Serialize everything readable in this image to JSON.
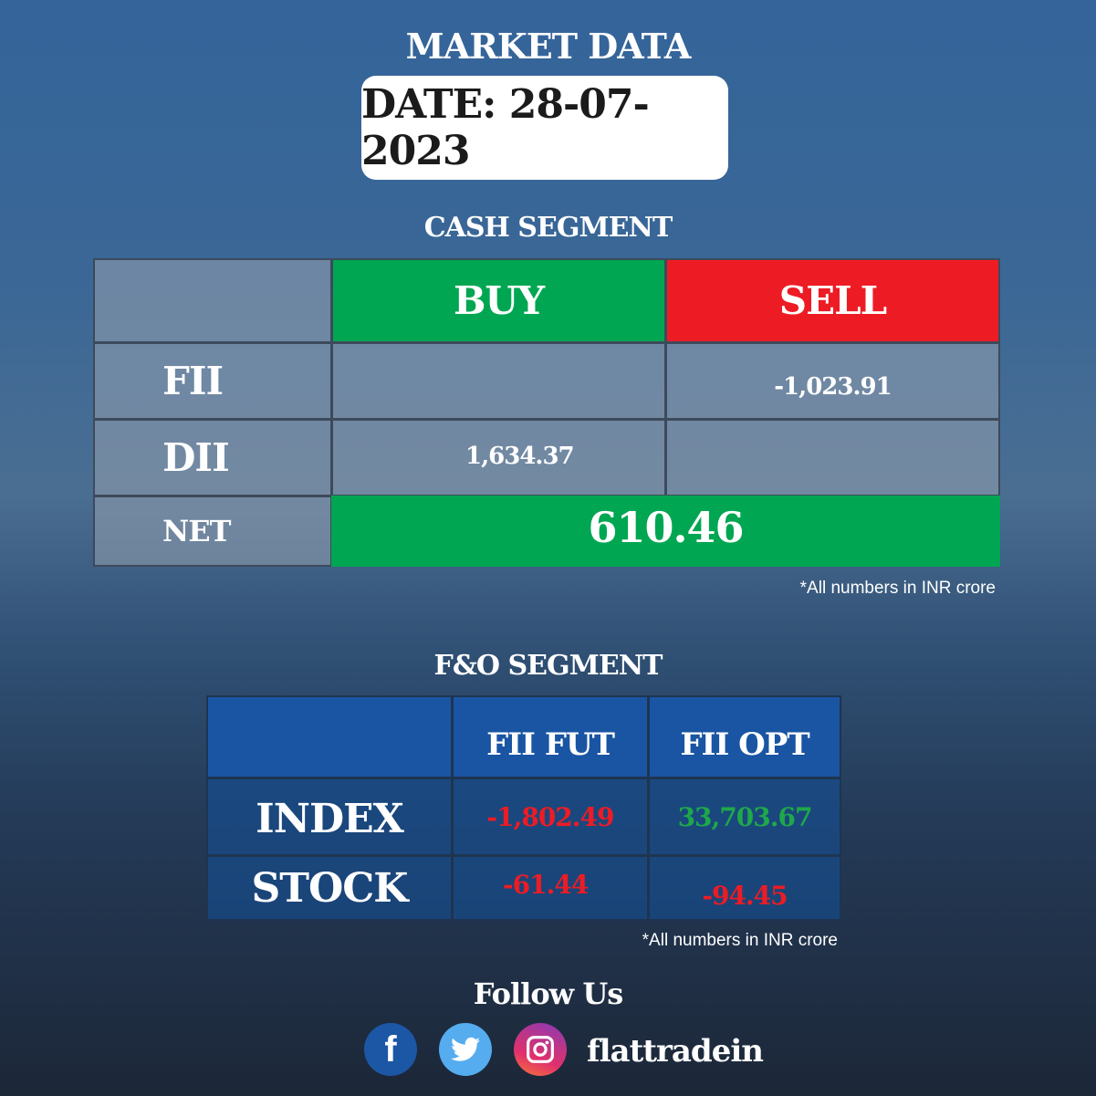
{
  "title": "MARKET DATA",
  "date_label": "DATE: 28-07-2023",
  "cash_segment": {
    "heading": "CASH SEGMENT",
    "columns": [
      "BUY",
      "SELL"
    ],
    "rows": [
      {
        "label": "FII",
        "buy": "",
        "sell": "-1,023.91"
      },
      {
        "label": "DII",
        "buy": "1,634.37",
        "sell": ""
      }
    ],
    "net_label": "NET",
    "net_value": "610.46",
    "note": "*All numbers in INR crore"
  },
  "fo_segment": {
    "heading": "F&O SEGMENT",
    "columns": [
      "FII FUT",
      "FII OPT"
    ],
    "rows": [
      {
        "label": "INDEX",
        "fut": "-1,802.49",
        "opt": "33,703.67"
      },
      {
        "label": "STOCK",
        "fut": "-61.44",
        "opt": "-94.45"
      }
    ],
    "note": "*All numbers in INR crore"
  },
  "footer": {
    "follow": "Follow Us",
    "handle": "flattradein",
    "icons": [
      "facebook-icon",
      "twitter-icon",
      "instagram-icon"
    ]
  },
  "colors": {
    "buy": "#00a651",
    "sell": "#ed1c24",
    "positive": "#1ea84a",
    "negative": "#ed1c24",
    "fo_header": "#1a55a3"
  }
}
